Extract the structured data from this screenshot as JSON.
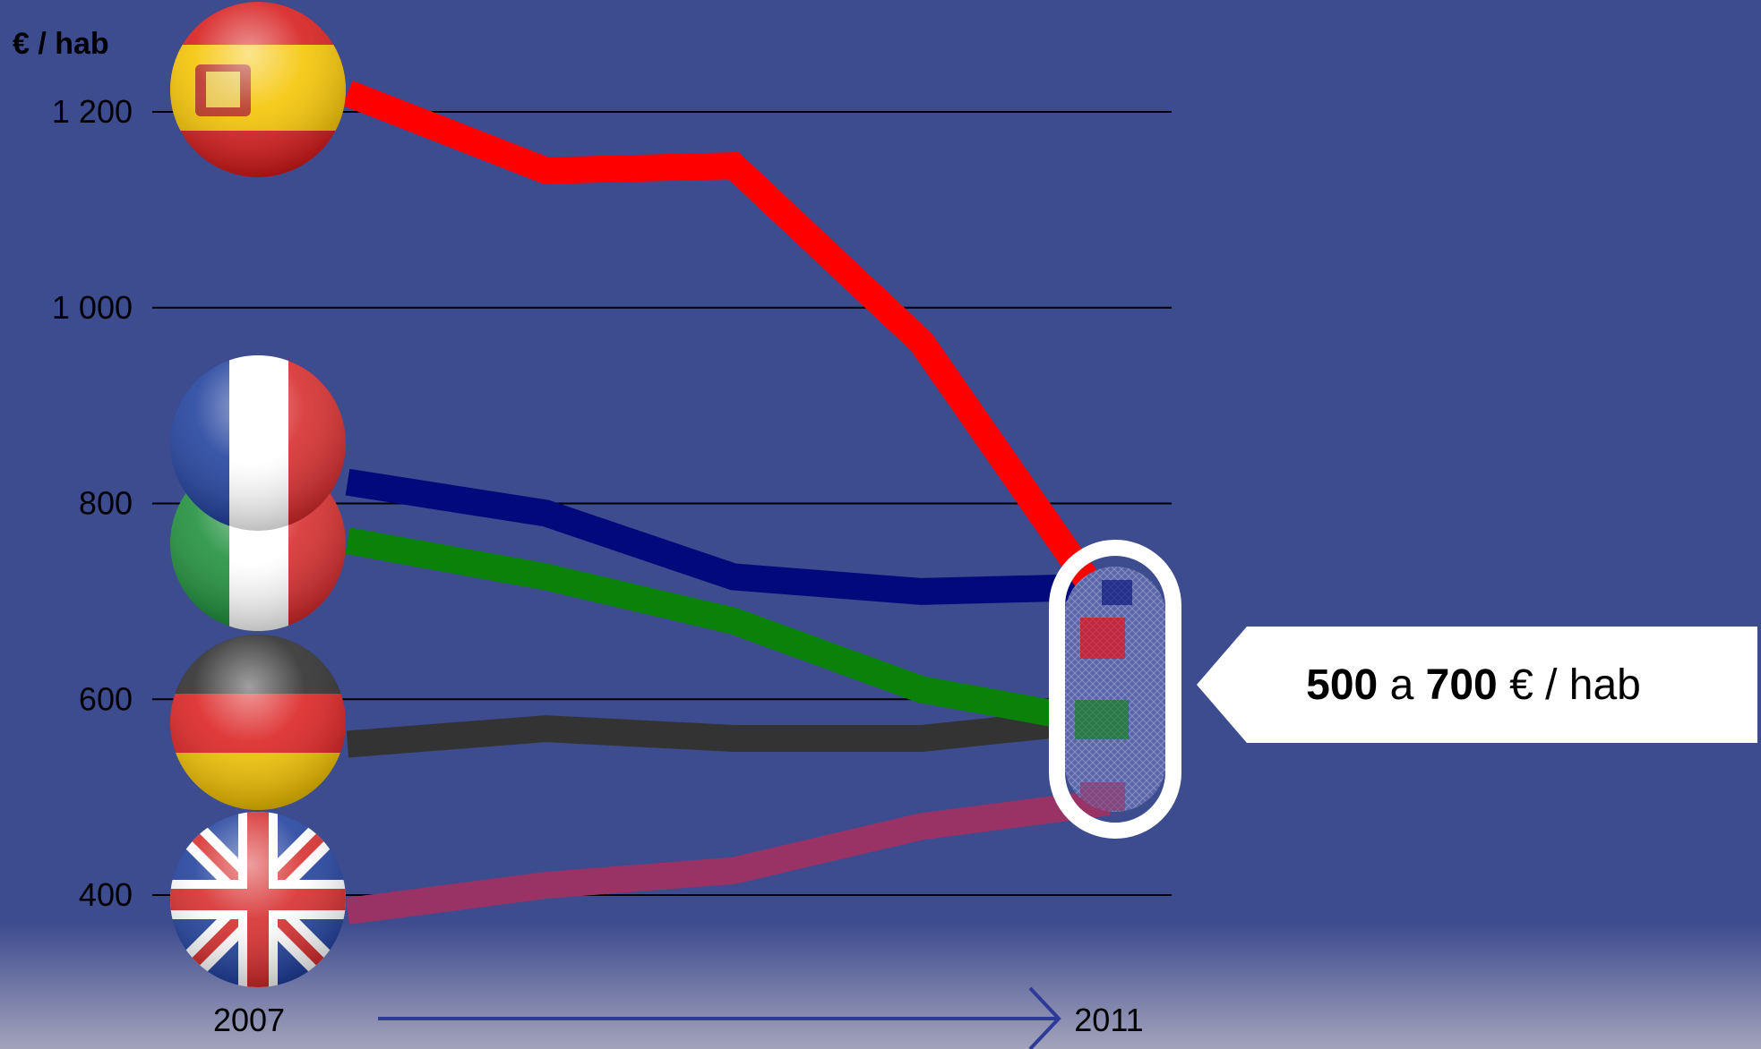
{
  "colors": {
    "background": "#3d4b8f",
    "background_fade": "#a3a3bb",
    "gridline": "#000000",
    "time_arrow": "#2e3a9a",
    "callout_fill": "#ffffff",
    "highlight_ring": "#ffffff"
  },
  "chart_data": {
    "type": "line",
    "ylabel": "€ / hab",
    "ylim": [
      400,
      1200
    ],
    "yticks": [
      400,
      600,
      800,
      1000,
      1200
    ],
    "ytick_labels": [
      "400",
      "600",
      "800",
      "1 000",
      "1 200"
    ],
    "x": [
      2007,
      2008,
      2009,
      2010,
      2011
    ],
    "x_labels": {
      "start": "2007",
      "end": "2011"
    },
    "grid": true,
    "series": [
      {
        "key": "spain",
        "icon": "spain-flag-icon",
        "color": "#ff0000",
        "values": [
          1215,
          1140,
          1145,
          965,
          690
        ]
      },
      {
        "key": "france",
        "icon": "france-flag-icon",
        "color": "#000a7a",
        "values": [
          820,
          790,
          725,
          710,
          715
        ]
      },
      {
        "key": "italy",
        "icon": "italy-flag-icon",
        "color": "#0a820a",
        "values": [
          760,
          725,
          680,
          610,
          575
        ]
      },
      {
        "key": "germany",
        "icon": "germany-flag-icon",
        "color": "#333333",
        "values": [
          555,
          570,
          560,
          560,
          580
        ]
      },
      {
        "key": "uk",
        "icon": "uk-flag-icon",
        "color": "#993366",
        "values": [
          385,
          410,
          425,
          470,
          495
        ]
      }
    ]
  },
  "callout": {
    "low": "500",
    "connector": "a",
    "high": "700",
    "unit": "€ / hab"
  }
}
